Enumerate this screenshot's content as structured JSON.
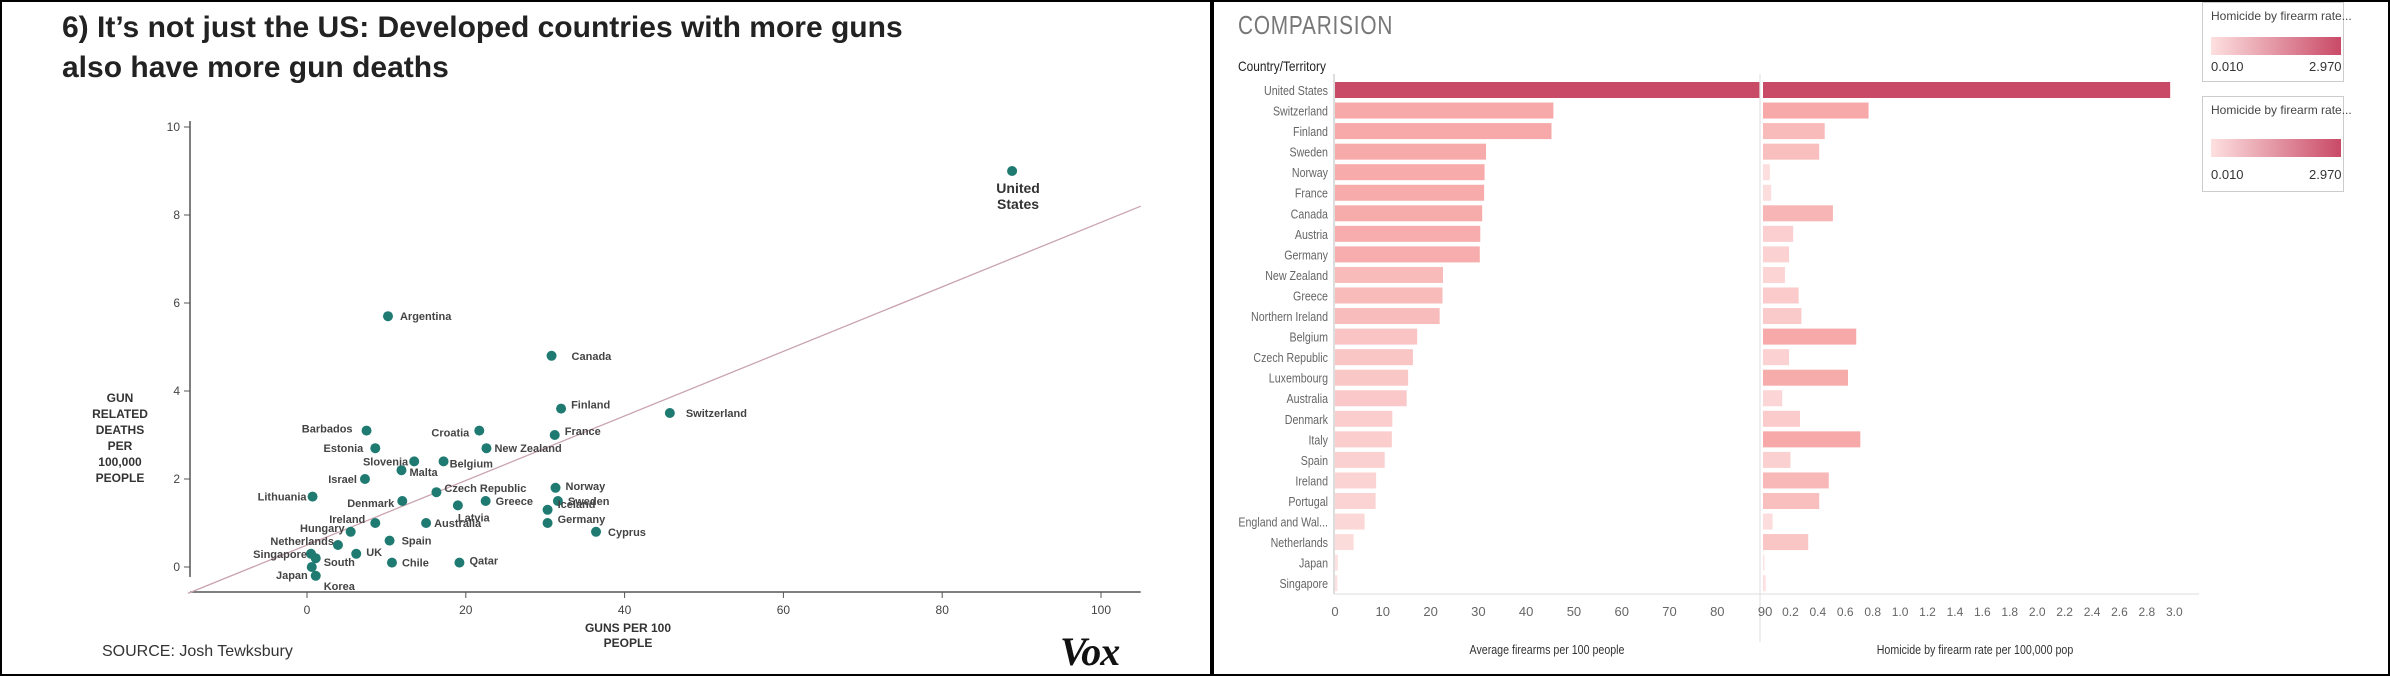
{
  "left_panel": {
    "headline_line1": "6) It’s not just the US: Developed countries with more guns",
    "headline_line2": "also have more gun deaths",
    "source": "SOURCE: Josh Tewksbury",
    "logo": "Vox",
    "y_label": [
      "GUN",
      "RELATED",
      "DEATHS",
      "PER",
      "100,000",
      "PEOPLE"
    ],
    "x_label": [
      "GUNS PER 100",
      "PEOPLE"
    ]
  },
  "right_panel": {
    "title": "COMPARISION",
    "column_header": "Country/Territory",
    "axis1_title": "Average firearms per 100 people",
    "axis2_title": "Homicide by firearm rate per 100,000 pop",
    "legend1": {
      "title": "Homicide by firearm rate...",
      "min": "0.010",
      "max": "2.970"
    },
    "legend2": {
      "title": "Homicide by firearm rate...",
      "min": "0.010",
      "max": "2.970"
    },
    "bar_colors": {
      "max": "#c94a67",
      "high": "#f7a8a8",
      "low": "#fde2e2"
    }
  },
  "chart_data": [
    {
      "type": "scatter",
      "title": "6) It’s not just the US: Developed countries with more guns also have more gun deaths",
      "xlabel": "GUNS PER 100 PEOPLE",
      "ylabel": "GUN RELATED DEATHS PER 100,000 PEOPLE",
      "xlim": [
        -15,
        105
      ],
      "ylim": [
        -0.5,
        10.5
      ],
      "xticks": [
        0,
        20,
        40,
        60,
        80,
        100
      ],
      "yticks": [
        0,
        2,
        4,
        6,
        8,
        10
      ],
      "trendline": [
        [
          -15,
          -0.6
        ],
        [
          105,
          8.2
        ]
      ],
      "points": [
        {
          "label": "United States",
          "x": 88.8,
          "y": 9.0
        },
        {
          "label": "Argentina",
          "x": 10.2,
          "y": 5.7
        },
        {
          "label": "Canada",
          "x": 30.8,
          "y": 4.8
        },
        {
          "label": "Finland",
          "x": 32.0,
          "y": 3.6
        },
        {
          "label": "Switzerland",
          "x": 45.7,
          "y": 3.5
        },
        {
          "label": "Barbados",
          "x": 7.5,
          "y": 3.1
        },
        {
          "label": "Croatia",
          "x": 21.7,
          "y": 3.1
        },
        {
          "label": "France",
          "x": 31.2,
          "y": 3.0
        },
        {
          "label": "Estonia",
          "x": 8.6,
          "y": 2.7
        },
        {
          "label": "New Zealand",
          "x": 22.6,
          "y": 2.7
        },
        {
          "label": "Slovenia",
          "x": 13.5,
          "y": 2.4
        },
        {
          "label": "Belgium",
          "x": 17.2,
          "y": 2.4
        },
        {
          "label": "Malta",
          "x": 11.9,
          "y": 2.2
        },
        {
          "label": "Israel",
          "x": 7.3,
          "y": 2.0
        },
        {
          "label": "Czech Republic",
          "x": 16.3,
          "y": 1.7
        },
        {
          "label": "Norway",
          "x": 31.3,
          "y": 1.8
        },
        {
          "label": "Lithuania",
          "x": 0.7,
          "y": 1.6
        },
        {
          "label": "Denmark",
          "x": 12.0,
          "y": 1.5
        },
        {
          "label": "Latvia",
          "x": 19.0,
          "y": 1.4
        },
        {
          "label": "Greece",
          "x": 22.5,
          "y": 1.5
        },
        {
          "label": "Sweden",
          "x": 31.6,
          "y": 1.5
        },
        {
          "label": "Iceland",
          "x": 30.3,
          "y": 1.3
        },
        {
          "label": "Ireland",
          "x": 8.6,
          "y": 1.0
        },
        {
          "label": "Australia",
          "x": 15.0,
          "y": 1.0
        },
        {
          "label": "Germany",
          "x": 30.3,
          "y": 1.0
        },
        {
          "label": "Hungary",
          "x": 5.5,
          "y": 0.8
        },
        {
          "label": "Cyprus",
          "x": 36.4,
          "y": 0.8
        },
        {
          "label": "Spain",
          "x": 10.4,
          "y": 0.6
        },
        {
          "label": "Netherlands",
          "x": 3.9,
          "y": 0.5
        },
        {
          "label": "UK",
          "x": 6.2,
          "y": 0.3
        },
        {
          "label": "Singapore",
          "x": 0.5,
          "y": 0.3
        },
        {
          "label": "South",
          "x": 1.1,
          "y": 0.2
        },
        {
          "label": "Chile",
          "x": 10.7,
          "y": 0.1
        },
        {
          "label": "Qatar",
          "x": 19.2,
          "y": 0.1
        },
        {
          "label": "Japan",
          "x": 0.6,
          "y": 0.0
        },
        {
          "label": "Korea",
          "x": 1.1,
          "y": -0.2
        }
      ]
    },
    {
      "type": "bar",
      "orientation": "horizontal",
      "title": "COMPARISION",
      "categories": [
        "United States",
        "Switzerland",
        "Finland",
        "Sweden",
        "Norway",
        "France",
        "Canada",
        "Austria",
        "Germany",
        "New Zealand",
        "Greece",
        "Northern Ireland",
        "Belgium",
        "Czech Republic",
        "Luxembourg",
        "Australia",
        "Denmark",
        "Italy",
        "Spain",
        "Ireland",
        "Portugal",
        "England and Wal...",
        "Netherlands",
        "Japan",
        "Singapore"
      ],
      "series": [
        {
          "name": "Average firearms per 100 people",
          "xlim": [
            0,
            95
          ],
          "ticks": [
            0,
            10,
            20,
            30,
            40,
            50,
            60,
            70,
            80,
            90
          ],
          "values": [
            88.8,
            45.7,
            45.3,
            31.6,
            31.3,
            31.2,
            30.8,
            30.4,
            30.3,
            22.6,
            22.5,
            21.9,
            17.2,
            16.3,
            15.3,
            15.0,
            12.0,
            11.9,
            10.4,
            8.6,
            8.5,
            6.2,
            3.9,
            0.6,
            0.5
          ]
        },
        {
          "name": "Homicide by firearm rate per 100,000 pop",
          "xlim": [
            0,
            3.1
          ],
          "ticks": [
            0.2,
            0.4,
            0.6,
            0.8,
            1.0,
            1.2,
            1.4,
            1.6,
            1.8,
            2.0,
            2.2,
            2.4,
            2.6,
            2.8,
            3.0
          ],
          "values": [
            2.97,
            0.77,
            0.45,
            0.41,
            0.05,
            0.06,
            0.51,
            0.22,
            0.19,
            0.16,
            0.26,
            0.28,
            0.68,
            0.19,
            0.62,
            0.14,
            0.27,
            0.71,
            0.2,
            0.48,
            0.41,
            0.07,
            0.33,
            0.01,
            0.02
          ]
        }
      ]
    }
  ]
}
